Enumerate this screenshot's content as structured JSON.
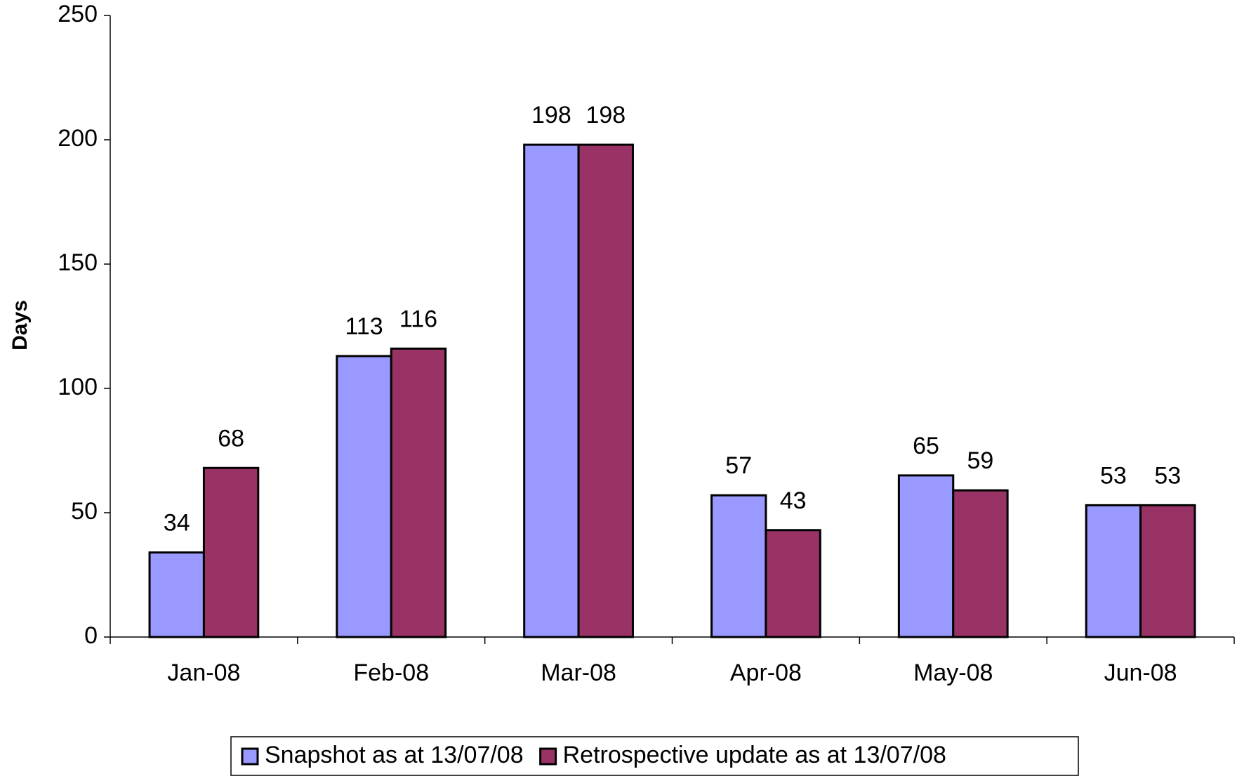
{
  "chart_data": {
    "type": "bar",
    "ylabel": "Days",
    "categories": [
      "Jan-08",
      "Feb-08",
      "Mar-08",
      "Apr-08",
      "May-08",
      "Jun-08"
    ],
    "series": [
      {
        "name": "Snapshot as at 13/07/08",
        "color": "#9999ff",
        "values": [
          34,
          113,
          198,
          57,
          65,
          53
        ]
      },
      {
        "name": "Retrospective update as at 13/07/08",
        "color": "#993366",
        "values": [
          68,
          116,
          198,
          43,
          59,
          53
        ]
      }
    ],
    "ylim": [
      0,
      250
    ],
    "yticks": [
      0,
      50,
      100,
      150,
      200,
      250
    ],
    "grid": false,
    "legend": "bottom"
  }
}
